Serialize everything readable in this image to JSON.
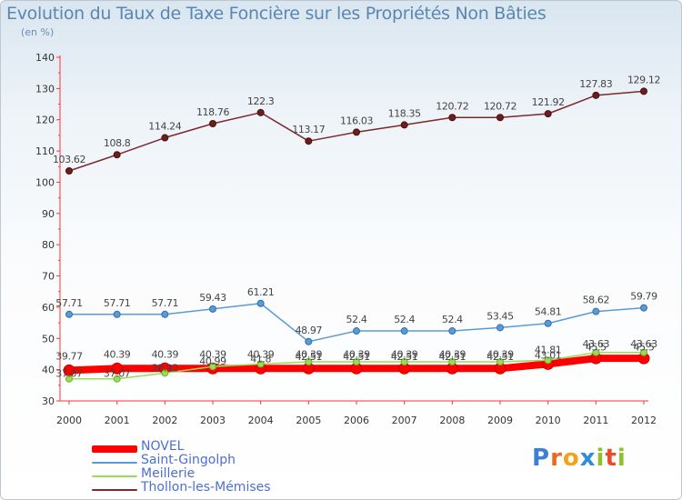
{
  "title": "Evolution du Taux de Taxe Foncière sur les Propriétés Non Bâties",
  "subtitle": "(en %)",
  "logo": "Proxiti",
  "chart_data": {
    "type": "line",
    "title": "Evolution du Taux de Taxe Foncière sur les Propriétés Non Bâties",
    "ylabel": "(en %)",
    "xlabel": "",
    "ylim": [
      30,
      140
    ],
    "yticks": [
      30,
      40,
      50,
      60,
      70,
      80,
      90,
      100,
      110,
      120,
      130,
      140
    ],
    "grid": false,
    "legend_position": "bottom-left",
    "x": [
      "2000",
      "2001",
      "2002",
      "2003",
      "2004",
      "2005",
      "2006",
      "2007",
      "2008",
      "2009",
      "2010",
      "2011",
      "2012"
    ],
    "series": [
      {
        "name": "NOVEL",
        "color": "#ff0000",
        "values": [
          39.77,
          40.39,
          40.39,
          40.39,
          40.39,
          40.39,
          40.39,
          40.39,
          40.39,
          40.39,
          41.81,
          43.63,
          43.63
        ],
        "labels": [
          "39.77",
          "40.39",
          "40.39",
          "40.39",
          "40.39",
          "40.39",
          "40.39",
          "40.39",
          "40.39",
          "40.39",
          "41.81",
          "43.63",
          "43.63"
        ]
      },
      {
        "name": "Saint-Gingolph",
        "color": "#5b9bd5",
        "values": [
          57.71,
          57.71,
          57.71,
          59.43,
          61.21,
          48.97,
          52.4,
          52.4,
          52.4,
          53.45,
          54.81,
          58.62,
          59.79
        ],
        "labels": [
          "57.71",
          "57.71",
          "57.71",
          "59.43",
          "61.21",
          "48.97",
          "52.4",
          "52.4",
          "52.4",
          "53.45",
          "54.81",
          "58.62",
          "59.79"
        ]
      },
      {
        "name": "Meillerie",
        "color": "#99dd55",
        "values": [
          37.07,
          37.07,
          38.92,
          40.99,
          41.8,
          42.51,
          42.51,
          42.51,
          42.51,
          42.51,
          43.01,
          45.5,
          45.5
        ],
        "labels": [
          "37.07",
          "37.07",
          "38.92",
          "40.99",
          "41.8",
          "42.51",
          "42.51",
          "42.51",
          "42.51",
          "42.51",
          "43.01",
          "45.5",
          "45.5"
        ]
      },
      {
        "name": "Thollon-les-Mémises",
        "color": "#7a2a2a",
        "values": [
          103.62,
          108.8,
          114.24,
          118.76,
          122.3,
          113.17,
          116.03,
          118.35,
          120.72,
          120.72,
          121.92,
          127.83,
          129.12
        ],
        "labels": [
          "103.62",
          "108.8",
          "114.24",
          "118.76",
          "122.3",
          "113.17",
          "116.03",
          "118.35",
          "120.72",
          "120.72",
          "121.92",
          "127.83",
          "129.12"
        ]
      }
    ]
  }
}
